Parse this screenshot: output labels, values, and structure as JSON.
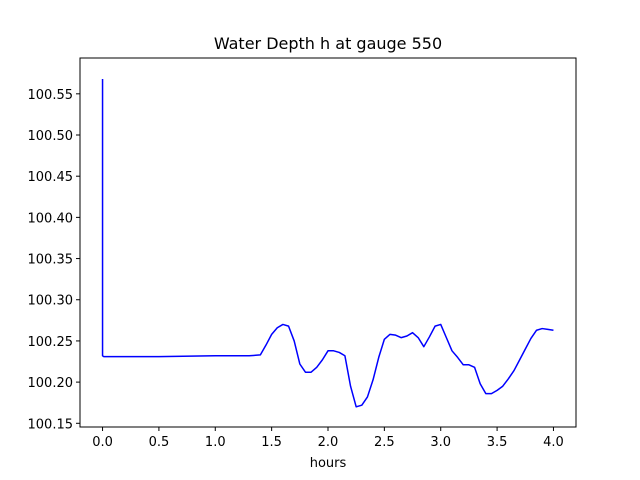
{
  "chart_data": {
    "type": "line",
    "title": "Water Depth h at gauge 550",
    "xlabel": "hours",
    "ylabel": "",
    "xlim": [
      -0.2,
      4.2
    ],
    "ylim": [
      100.1455,
      100.5935
    ],
    "xticks": [
      0.0,
      0.5,
      1.0,
      1.5,
      2.0,
      2.5,
      3.0,
      3.5,
      4.0
    ],
    "xtick_labels": [
      "0.0",
      "0.5",
      "1.0",
      "1.5",
      "2.0",
      "2.5",
      "3.0",
      "3.5",
      "4.0"
    ],
    "yticks": [
      100.15,
      100.2,
      100.25,
      100.3,
      100.35,
      100.4,
      100.45,
      100.5,
      100.55
    ],
    "ytick_labels": [
      "100.15",
      "100.20",
      "100.25",
      "100.30",
      "100.35",
      "100.40",
      "100.45",
      "100.50",
      "100.55"
    ],
    "grid": false,
    "series": [
      {
        "name": "h",
        "color": "#0000ff",
        "x": [
          0.0,
          0.0,
          0.01,
          0.5,
          1.0,
          1.3,
          1.4,
          1.45,
          1.5,
          1.55,
          1.6,
          1.65,
          1.7,
          1.75,
          1.8,
          1.85,
          1.9,
          1.95,
          2.0,
          2.05,
          2.1,
          2.15,
          2.2,
          2.25,
          2.3,
          2.35,
          2.4,
          2.45,
          2.5,
          2.55,
          2.6,
          2.65,
          2.7,
          2.75,
          2.8,
          2.85,
          2.9,
          2.95,
          3.0,
          3.05,
          3.1,
          3.15,
          3.2,
          3.25,
          3.3,
          3.35,
          3.4,
          3.45,
          3.5,
          3.55,
          3.6,
          3.65,
          3.7,
          3.75,
          3.8,
          3.85,
          3.9,
          3.95,
          4.0
        ],
        "y": [
          100.568,
          100.232,
          100.231,
          100.231,
          100.232,
          100.232,
          100.233,
          100.245,
          100.258,
          100.266,
          100.27,
          100.268,
          100.25,
          100.222,
          100.212,
          100.212,
          100.218,
          100.227,
          100.238,
          100.238,
          100.236,
          100.232,
          100.195,
          100.17,
          100.172,
          100.182,
          100.203,
          100.23,
          100.252,
          100.258,
          100.257,
          100.254,
          100.256,
          100.26,
          100.254,
          100.243,
          100.255,
          100.268,
          100.27,
          100.254,
          100.238,
          100.23,
          100.221,
          100.221,
          100.218,
          100.198,
          100.186,
          100.186,
          100.19,
          100.195,
          100.204,
          100.214,
          100.227,
          100.24,
          100.253,
          100.263,
          100.265,
          100.264,
          100.263
        ]
      }
    ]
  }
}
